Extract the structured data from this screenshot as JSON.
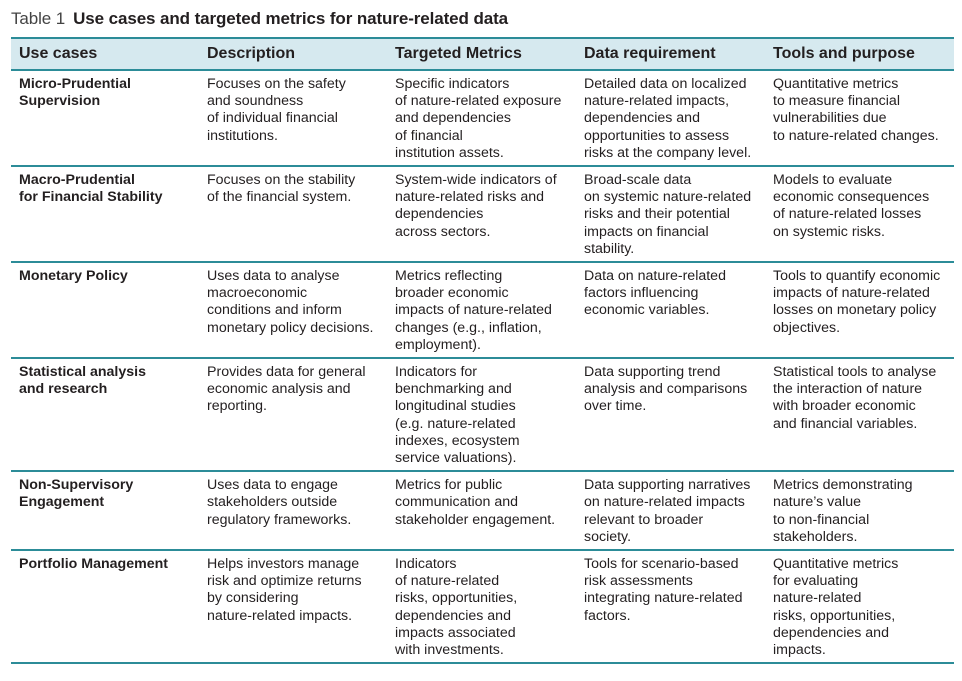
{
  "caption": {
    "label": "Table 1",
    "title": "Use cases and targeted metrics for nature-related data"
  },
  "colors": {
    "header_bg": "#d6e9ef",
    "rule": "#2c8c98",
    "text": "#231f20"
  },
  "table": {
    "headers": [
      "Use cases",
      "Description",
      "Targeted Metrics",
      "Data requirement",
      "Tools and purpose"
    ],
    "rows": [
      {
        "use_case": [
          "Micro-Prudential",
          "Supervision"
        ],
        "description": [
          "Focuses on the safety",
          "and soundness",
          "of individual financial",
          "institutions."
        ],
        "targeted_metrics": [
          "Specific indicators",
          "of nature-related exposure",
          "and dependencies",
          "of financial",
          "institution assets."
        ],
        "data_requirement": [
          "Detailed data on localized",
          "nature-related impacts,",
          "dependencies and",
          "opportunities to assess",
          "risks at the company level."
        ],
        "tools_purpose": [
          "Quantitative metrics",
          "to measure financial",
          "vulnerabilities due",
          "to nature-related changes."
        ]
      },
      {
        "use_case": [
          "Macro-Prudential",
          "for Financial Stability"
        ],
        "description": [
          "Focuses on the stability",
          "of the financial system."
        ],
        "targeted_metrics": [
          "System-wide indicators of",
          "nature-related risks and",
          "dependencies",
          "across sectors."
        ],
        "data_requirement": [
          "Broad-scale data",
          "on systemic nature-related",
          "risks and their potential",
          "impacts on financial",
          "stability."
        ],
        "tools_purpose": [
          "Models to evaluate",
          "economic consequences",
          "of nature-related losses",
          "on systemic risks."
        ]
      },
      {
        "use_case": [
          "Monetary Policy"
        ],
        "description": [
          "Uses data to analyse",
          "macroeconomic",
          "conditions and inform",
          "monetary policy decisions."
        ],
        "targeted_metrics": [
          "Metrics reflecting",
          "broader economic",
          "impacts of nature-related",
          "changes (e.g., inflation,",
          "employment)."
        ],
        "data_requirement": [
          "Data on nature-related",
          "factors influencing",
          "economic variables."
        ],
        "tools_purpose": [
          "Tools to quantify economic",
          "impacts of nature-related",
          "losses on monetary policy",
          "objectives."
        ]
      },
      {
        "use_case": [
          "Statistical analysis",
          "and research"
        ],
        "description": [
          "Provides data for general",
          "economic analysis and",
          "reporting."
        ],
        "targeted_metrics": [
          "Indicators for",
          "benchmarking and",
          "longitudinal studies",
          "(e.g. nature-related",
          "indexes, ecosystem",
          "service valuations)."
        ],
        "data_requirement": [
          "Data supporting trend",
          "analysis and comparisons",
          "over time."
        ],
        "tools_purpose": [
          "Statistical tools to analyse",
          "the interaction of nature",
          "with broader economic",
          "and financial variables."
        ]
      },
      {
        "use_case": [
          "Non-Supervisory",
          "Engagement"
        ],
        "description": [
          "Uses data to engage",
          "stakeholders outside",
          "regulatory frameworks."
        ],
        "targeted_metrics": [
          "Metrics for public",
          "communication and",
          "stakeholder engagement."
        ],
        "data_requirement": [
          "Data supporting narratives",
          "on nature-related impacts",
          "relevant to broader",
          "society."
        ],
        "tools_purpose": [
          "Metrics demonstrating",
          "nature’s value",
          "to non-financial",
          "stakeholders."
        ]
      },
      {
        "use_case": [
          "Portfolio Management"
        ],
        "description": [
          "Helps investors manage",
          "risk and optimize returns",
          "by considering",
          "nature-related impacts."
        ],
        "targeted_metrics": [
          "Indicators",
          "of nature-related",
          "risks, opportunities,",
          "dependencies and",
          "impacts associated",
          "with investments."
        ],
        "data_requirement": [
          "Tools for scenario-based",
          "risk assessments",
          "integrating nature-related",
          "factors."
        ],
        "tools_purpose": [
          "Quantitative metrics",
          "for evaluating",
          "nature-related",
          "risks, opportunities,",
          "dependencies and",
          "impacts."
        ]
      }
    ]
  }
}
